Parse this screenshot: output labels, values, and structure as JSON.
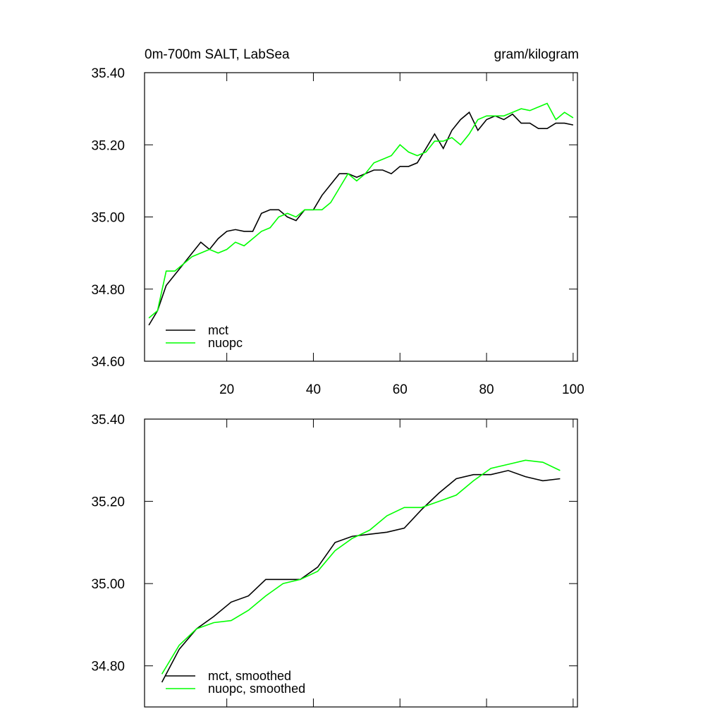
{
  "chart_data": [
    {
      "type": "line",
      "title": "0m-700m SALT, LabSea",
      "subtitle": "gram/kilogram",
      "x": [
        2,
        4,
        6,
        8,
        10,
        12,
        14,
        16,
        18,
        20,
        22,
        24,
        26,
        28,
        30,
        32,
        34,
        36,
        38,
        40,
        42,
        44,
        46,
        48,
        50,
        52,
        54,
        56,
        58,
        60,
        62,
        64,
        66,
        68,
        70,
        72,
        74,
        76,
        78,
        80,
        82,
        84,
        86,
        88,
        90,
        92,
        94,
        96,
        98,
        100
      ],
      "series": [
        {
          "name": "mct",
          "color": "#000000",
          "values": [
            34.7,
            34.74,
            34.81,
            34.84,
            34.87,
            34.9,
            34.93,
            34.91,
            34.94,
            34.96,
            34.965,
            34.96,
            34.96,
            35.01,
            35.02,
            35.02,
            35.0,
            34.99,
            35.02,
            35.02,
            35.06,
            35.09,
            35.12,
            35.12,
            35.11,
            35.12,
            35.13,
            35.13,
            35.12,
            35.14,
            35.14,
            35.15,
            35.19,
            35.23,
            35.19,
            35.24,
            35.27,
            35.29,
            35.24,
            35.27,
            35.28,
            35.27,
            35.285,
            35.26,
            35.26,
            35.245,
            35.245,
            35.26,
            35.26,
            35.255
          ]
        },
        {
          "name": "nuopc",
          "color": "#00ff00",
          "values": [
            34.72,
            34.74,
            34.85,
            34.85,
            34.87,
            34.89,
            34.9,
            34.91,
            34.9,
            34.91,
            34.93,
            34.92,
            34.94,
            34.96,
            34.97,
            35.0,
            35.01,
            35.0,
            35.02,
            35.02,
            35.02,
            35.04,
            35.08,
            35.12,
            35.1,
            35.12,
            35.15,
            35.16,
            35.17,
            35.2,
            35.18,
            35.17,
            35.18,
            35.21,
            35.21,
            35.22,
            35.2,
            35.23,
            35.27,
            35.28,
            35.28,
            35.28,
            35.29,
            35.3,
            35.295,
            35.305,
            35.315,
            35.27,
            35.29,
            35.275
          ]
        }
      ],
      "xlim": [
        1,
        101
      ],
      "xticks": [
        20,
        40,
        60,
        80,
        100
      ],
      "ylim": [
        34.6,
        35.4
      ],
      "yticks": [
        {
          "value": 34.6,
          "label": "34.60"
        },
        {
          "value": 34.8,
          "label": "34.80"
        },
        {
          "value": 35.0,
          "label": "35.00"
        },
        {
          "value": 35.2,
          "label": "35.20"
        },
        {
          "value": 35.4,
          "label": "35.40"
        }
      ],
      "legend": "lower left"
    },
    {
      "type": "line",
      "x": [
        5,
        9,
        13,
        17,
        21,
        25,
        29,
        33,
        37,
        41,
        45,
        49,
        53,
        57,
        61,
        65,
        69,
        73,
        77,
        81,
        85,
        89,
        93,
        97
      ],
      "series": [
        {
          "name": "mct, smoothed",
          "color": "#000000",
          "values": [
            34.76,
            34.84,
            34.89,
            34.92,
            34.955,
            34.97,
            35.01,
            35.01,
            35.01,
            35.04,
            35.1,
            35.115,
            35.12,
            35.125,
            35.135,
            35.18,
            35.22,
            35.255,
            35.265,
            35.265,
            35.275,
            35.26,
            35.25,
            35.255
          ]
        },
        {
          "name": "nuopc, smoothed",
          "color": "#00ff00",
          "values": [
            34.78,
            34.85,
            34.89,
            34.905,
            34.91,
            34.935,
            34.97,
            35.0,
            35.01,
            35.03,
            35.08,
            35.11,
            35.13,
            35.165,
            35.185,
            35.185,
            35.2,
            35.215,
            35.25,
            35.28,
            35.29,
            35.3,
            35.295,
            35.275
          ]
        }
      ],
      "xlim": [
        1,
        101
      ],
      "xticks": [
        20,
        40,
        60,
        80,
        100
      ],
      "ylim": [
        34.7,
        35.4
      ],
      "yticks": [
        {
          "value": 34.8,
          "label": "34.80"
        },
        {
          "value": 35.0,
          "label": "35.00"
        },
        {
          "value": 35.2,
          "label": "35.20"
        },
        {
          "value": 35.4,
          "label": "35.40"
        }
      ],
      "legend": "lower left"
    }
  ]
}
